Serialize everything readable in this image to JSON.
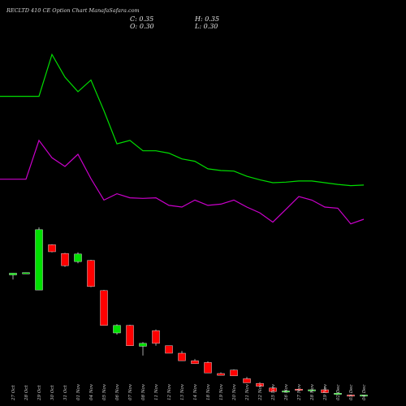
{
  "header": {
    "title": "RECLTD 410  CE Option  Chart ManafaSafara.com",
    "open_label": "O:",
    "open_value": "0.30",
    "close_label": "C:",
    "close_value": "0.35",
    "high_label": "H:",
    "high_value": "0.35",
    "low_label": "L:",
    "low_value": "0.30"
  },
  "colors": {
    "background": "#000000",
    "bullish": "#00e000",
    "bearish": "#ff0000",
    "upper_line": "#00dd00",
    "lower_line": "#cc00cc"
  },
  "chart_data": {
    "type": "candlestick",
    "categories": [
      "27 Oct",
      "28 Oct",
      "29 Oct",
      "30 Oct",
      "31 Oct",
      "01 Nov",
      "04 Nov",
      "05 Nov",
      "06 Nov",
      "07 Nov",
      "08 Nov",
      "11 Nov",
      "12 Nov",
      "13 Nov",
      "14 Nov",
      "18 Nov",
      "19 Nov",
      "20 Nov",
      "21 Nov",
      "22 Nov",
      "25 Nov",
      "26 Nov",
      "27 Nov",
      "28 Nov",
      "29 Nov",
      "02 Dec",
      "03 Dec",
      "04 Dec"
    ],
    "candles": [
      {
        "open": 7.6,
        "high": 7.9,
        "low": 6.8,
        "close": 7.9
      },
      {
        "open": 7.9,
        "high": 8.0,
        "low": 7.85,
        "close": 8.0
      },
      {
        "open": 5.0,
        "high": 15.8,
        "low": 5.0,
        "close": 15.4
      },
      {
        "open": 12.8,
        "high": 12.9,
        "low": 11.5,
        "close": 11.6
      },
      {
        "open": 11.3,
        "high": 11.4,
        "low": 9.0,
        "close": 9.2
      },
      {
        "open": 9.9,
        "high": 11.5,
        "low": 9.6,
        "close": 11.2
      },
      {
        "open": 10.1,
        "high": 10.2,
        "low": 5.5,
        "close": 5.6
      },
      {
        "open": 4.9,
        "high": 5.0,
        "low": -1.0,
        "close": -1.1
      },
      {
        "open": -2.4,
        "high": -0.9,
        "low": -2.7,
        "close": -1.1
      },
      {
        "open": -1.1,
        "high": -1.0,
        "low": -4.6,
        "close": -4.6
      },
      {
        "open": -4.7,
        "high": -4.0,
        "low": -6.3,
        "close": -4.2
      },
      {
        "open": -2.0,
        "high": -1.8,
        "low": -4.6,
        "close": -4.2
      },
      {
        "open": -4.6,
        "high": -4.6,
        "low": -5.9,
        "close": -5.9
      },
      {
        "open": -5.9,
        "high": -5.5,
        "low": -7.2,
        "close": -7.2
      },
      {
        "open": -7.2,
        "high": -6.9,
        "low": -7.7,
        "close": -7.7
      },
      {
        "open": -7.5,
        "high": -7.3,
        "low": -9.3,
        "close": -9.3
      },
      {
        "open": -9.4,
        "high": -9.2,
        "low": -9.7,
        "close": -9.7
      },
      {
        "open": -8.8,
        "high": -8.7,
        "low": -9.8,
        "close": -9.8
      },
      {
        "open": -10.3,
        "high": -10.0,
        "low": -11.0,
        "close": -11.0
      },
      {
        "open": -11.1,
        "high": -10.9,
        "low": -11.6,
        "close": -11.6
      },
      {
        "open": -11.9,
        "high": -11.8,
        "low": -12.5,
        "close": -12.5
      },
      {
        "open": -12.6,
        "high": -12.2,
        "low": -12.7,
        "close": -12.4
      },
      {
        "open": -12.1,
        "high": -12.0,
        "low": -12.3,
        "close": -12.3
      },
      {
        "open": -12.3,
        "high": -12.1,
        "low": -12.6,
        "close": -12.2
      },
      {
        "open": -12.2,
        "high": -11.7,
        "low": -12.7,
        "close": -12.7
      },
      {
        "open": -12.8,
        "high": -12.7,
        "low": -13.0,
        "close": -12.8
      },
      {
        "open": -13.1,
        "high": -13.0,
        "low": -13.3,
        "close": -13.3
      },
      {
        "open": -13.3,
        "high": -13.1,
        "low": -13.3,
        "close": -13.1
      }
    ],
    "series": [
      {
        "values": [
          38.4,
          38.4,
          38.4,
          45.6,
          41.7,
          39.2,
          41.2,
          35.9,
          30.2,
          30.8,
          29.0,
          29.0,
          28.6,
          27.6,
          27.2,
          25.9,
          25.6,
          25.5,
          24.6,
          24.0,
          23.5,
          23.6,
          23.8,
          23.8,
          23.5,
          23.2,
          23.0,
          23.1
        ]
      },
      {
        "values": [
          24.1,
          24.1,
          30.8,
          27.8,
          26.3,
          28.4,
          24.2,
          20.5,
          21.6,
          20.9,
          20.8,
          20.9,
          19.6,
          19.3,
          20.5,
          19.6,
          19.8,
          20.5,
          19.3,
          18.3,
          16.7,
          18.9,
          21.1,
          20.5,
          19.3,
          19.1,
          16.4,
          17.2
        ]
      }
    ],
    "ylim": [
      -15,
      55
    ],
    "grid": false,
    "legend": "none"
  }
}
